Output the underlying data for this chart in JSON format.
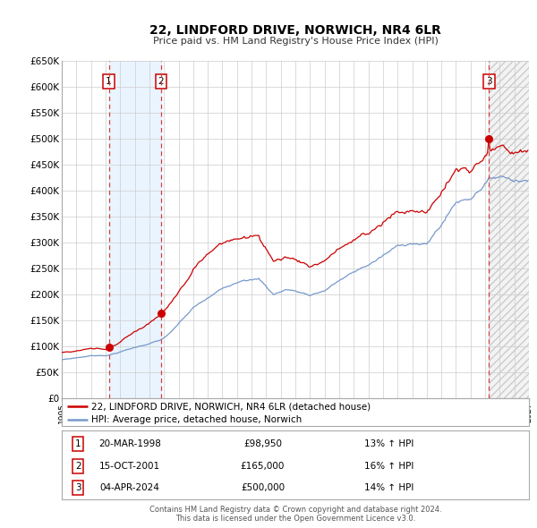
{
  "title": "22, LINDFORD DRIVE, NORWICH, NR4 6LR",
  "subtitle": "Price paid vs. HM Land Registry's House Price Index (HPI)",
  "xlim": [
    1995.0,
    2027.0
  ],
  "ylim": [
    0,
    650000
  ],
  "yticks": [
    0,
    50000,
    100000,
    150000,
    200000,
    250000,
    300000,
    350000,
    400000,
    450000,
    500000,
    550000,
    600000,
    650000
  ],
  "ytick_labels": [
    "£0",
    "£50K",
    "£100K",
    "£150K",
    "£200K",
    "£250K",
    "£300K",
    "£350K",
    "£400K",
    "£450K",
    "£500K",
    "£550K",
    "£600K",
    "£650K"
  ],
  "sale_dates": [
    1998.22,
    2001.79,
    2024.26
  ],
  "sale_prices": [
    98950,
    165000,
    500000
  ],
  "sale_labels": [
    "1",
    "2",
    "3"
  ],
  "legend_red": "22, LINDFORD DRIVE, NORWICH, NR4 6LR (detached house)",
  "legend_blue": "HPI: Average price, detached house, Norwich",
  "table_rows": [
    [
      "1",
      "20-MAR-1998",
      "£98,950",
      "13% ↑ HPI"
    ],
    [
      "2",
      "15-OCT-2001",
      "£165,000",
      "16% ↑ HPI"
    ],
    [
      "3",
      "04-APR-2024",
      "£500,000",
      "14% ↑ HPI"
    ]
  ],
  "footer1": "Contains HM Land Registry data © Crown copyright and database right 2024.",
  "footer2": "This data is licensed under the Open Government Licence v3.0.",
  "red_color": "#cc0000",
  "blue_color": "#7799cc",
  "bg_color": "#ffffff",
  "plot_bg_color": "#ffffff",
  "grid_color": "#cccccc",
  "shade_color": "#ddeeff",
  "dashed_vline_color": "#cc4444"
}
